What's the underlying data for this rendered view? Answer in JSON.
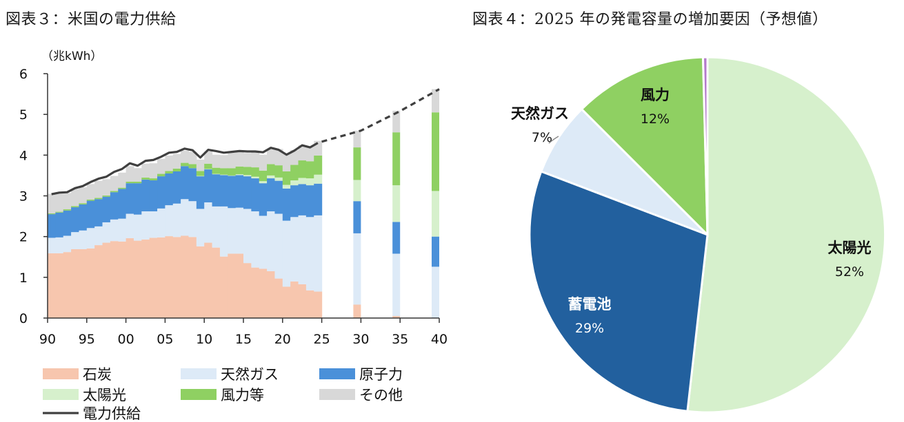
{
  "titles": {
    "left": "図表３：米国の電力供給",
    "right": "図表４：2025 年の発電容量の増加要因（予想値）"
  },
  "chart_data": [
    {
      "type": "area",
      "title": "図表３：米国の電力供給",
      "unit_label": "（兆kWh）",
      "ylim": [
        0,
        6
      ],
      "yticks": [
        "0",
        "1",
        "2",
        "3",
        "4",
        "5",
        "6"
      ],
      "xlim": [
        1990,
        2040
      ],
      "xticks": [
        "90",
        "95",
        "00",
        "05",
        "10",
        "15",
        "20",
        "25",
        "30",
        "35",
        "40"
      ],
      "colors": {
        "石炭": "#f7c6ae",
        "天然ガス": "#ddeaf7",
        "原子力": "#4a90d9",
        "太陽光": "#d6f0cc",
        "風力等": "#8fd062",
        "その他": "#d8d8d8",
        "電力供給": "#404040"
      },
      "years": [
        1990,
        1991,
        1992,
        1993,
        1994,
        1995,
        1996,
        1997,
        1998,
        1999,
        2000,
        2001,
        2002,
        2003,
        2004,
        2005,
        2006,
        2007,
        2008,
        2009,
        2010,
        2011,
        2012,
        2013,
        2014,
        2015,
        2016,
        2017,
        2018,
        2019,
        2020,
        2021,
        2022,
        2023,
        2024
      ],
      "series": [
        {
          "name": "石炭",
          "values": [
            1.59,
            1.59,
            1.62,
            1.69,
            1.69,
            1.71,
            1.79,
            1.85,
            1.89,
            1.88,
            1.96,
            1.9,
            1.93,
            1.97,
            1.98,
            2.01,
            1.99,
            2.02,
            1.99,
            1.76,
            1.85,
            1.73,
            1.51,
            1.58,
            1.58,
            1.35,
            1.24,
            1.21,
            1.15,
            0.97,
            0.77,
            0.9,
            0.83,
            0.68,
            0.65
          ]
        },
        {
          "name": "天然ガス",
          "values": [
            0.38,
            0.39,
            0.4,
            0.42,
            0.46,
            0.5,
            0.46,
            0.5,
            0.53,
            0.56,
            0.6,
            0.64,
            0.69,
            0.65,
            0.71,
            0.76,
            0.82,
            0.9,
            0.88,
            0.92,
            0.99,
            1.01,
            1.23,
            1.12,
            1.13,
            1.33,
            1.38,
            1.3,
            1.47,
            1.59,
            1.62,
            1.58,
            1.69,
            1.8,
            1.87
          ]
        },
        {
          "name": "原子力",
          "values": [
            0.58,
            0.61,
            0.62,
            0.61,
            0.64,
            0.67,
            0.67,
            0.63,
            0.67,
            0.73,
            0.75,
            0.77,
            0.78,
            0.76,
            0.79,
            0.78,
            0.79,
            0.81,
            0.81,
            0.8,
            0.81,
            0.79,
            0.77,
            0.79,
            0.8,
            0.8,
            0.81,
            0.8,
            0.81,
            0.81,
            0.79,
            0.78,
            0.77,
            0.78,
            0.78
          ]
        },
        {
          "name": "太陽光",
          "values": [
            0,
            0,
            0,
            0,
            0,
            0,
            0,
            0,
            0,
            0,
            0,
            0,
            0,
            0,
            0,
            0,
            0,
            0,
            0,
            0.01,
            0.01,
            0.01,
            0.01,
            0.01,
            0.02,
            0.03,
            0.04,
            0.05,
            0.07,
            0.08,
            0.09,
            0.12,
            0.15,
            0.17,
            0.22
          ]
        },
        {
          "name": "風力等",
          "values": [
            0.02,
            0.02,
            0.03,
            0.03,
            0.03,
            0.03,
            0.03,
            0.03,
            0.03,
            0.03,
            0.04,
            0.04,
            0.05,
            0.05,
            0.06,
            0.06,
            0.07,
            0.08,
            0.1,
            0.12,
            0.13,
            0.15,
            0.16,
            0.18,
            0.19,
            0.2,
            0.23,
            0.26,
            0.28,
            0.3,
            0.33,
            0.38,
            0.43,
            0.42,
            0.47
          ]
        },
        {
          "name": "その他",
          "values": [
            0.48,
            0.48,
            0.4,
            0.42,
            0.39,
            0.38,
            0.42,
            0.4,
            0.37,
            0.37,
            0.38,
            0.33,
            0.34,
            0.37,
            0.37,
            0.38,
            0.36,
            0.3,
            0.3,
            0.28,
            0.3,
            0.32,
            0.32,
            0.38,
            0.37,
            0.34,
            0.38,
            0.39,
            0.37,
            0.4,
            0.43,
            0.36,
            0.37,
            0.36,
            0.36
          ]
        }
      ],
      "supply": {
        "name": "電力供給",
        "values": [
          3.04,
          3.08,
          3.09,
          3.19,
          3.24,
          3.34,
          3.42,
          3.47,
          3.59,
          3.66,
          3.8,
          3.74,
          3.86,
          3.88,
          3.96,
          4.06,
          4.08,
          4.16,
          4.12,
          3.94,
          4.13,
          4.1,
          4.06,
          4.08,
          4.1,
          4.09,
          4.09,
          4.07,
          4.18,
          4.13,
          4.01,
          4.11,
          4.24,
          4.19,
          4.3
        ]
      },
      "forecast_years": [
        2030,
        2035,
        2040
      ],
      "forecast_series": [
        {
          "name": "石炭",
          "values": [
            0.33,
            0.05,
            0.0
          ]
        },
        {
          "name": "天然ガス",
          "values": [
            1.75,
            1.53,
            1.26
          ]
        },
        {
          "name": "原子力",
          "values": [
            0.79,
            0.78,
            0.74
          ]
        },
        {
          "name": "太陽光",
          "values": [
            0.52,
            0.9,
            1.12
          ]
        },
        {
          "name": "風力等",
          "values": [
            0.8,
            1.3,
            1.93
          ]
        },
        {
          "name": "その他",
          "values": [
            0.41,
            0.53,
            0.57
          ]
        }
      ],
      "forecast_supply": {
        "years": [
          2025,
          2030,
          2035,
          2040
        ],
        "values": [
          4.33,
          4.6,
          5.08,
          5.62
        ]
      },
      "legend": [
        "石炭",
        "天然ガス",
        "原子力",
        "太陽光",
        "風力等",
        "その他",
        "電力供給"
      ]
    },
    {
      "type": "pie",
      "title": "図表４：2025 年の発電容量の増加要因（予想値）",
      "slices": [
        {
          "name": "太陽光",
          "value": 51.8,
          "label_pct": "52%",
          "color": "#d6f0cc",
          "text_light": false
        },
        {
          "name": "蓄電池",
          "value": 29.0,
          "label_pct": "29%",
          "color": "#22609e",
          "text_light": true
        },
        {
          "name": "天然ガス",
          "value": 6.7,
          "label_pct": "7%",
          "color": "#ddeaf7",
          "text_light": false
        },
        {
          "name": "風力",
          "value": 12.1,
          "label_pct": "12%",
          "color": "#8fd062",
          "text_light": false
        },
        {
          "name": "その他",
          "value": 0.4,
          "label_pct": "",
          "color": "#b37acb",
          "text_light": false
        }
      ]
    }
  ]
}
